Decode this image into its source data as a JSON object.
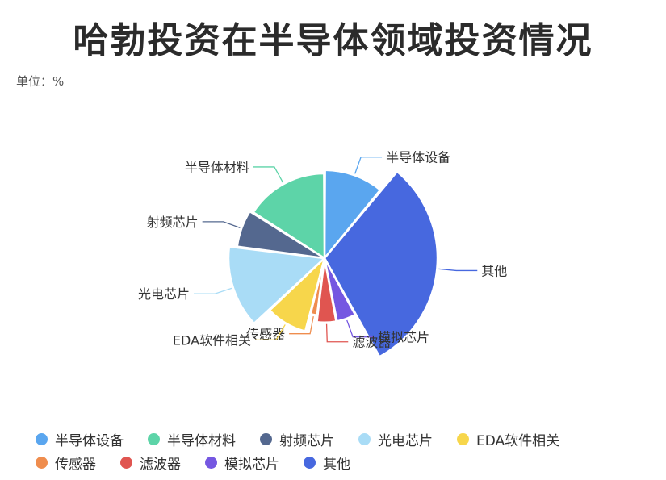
{
  "header": {
    "title": "哈勃投资在半导体领域投资情况",
    "unit": "单位：%"
  },
  "chart_data": {
    "type": "pie",
    "subtype": "nightingale-rose",
    "title": "哈勃投资在半导体领域投资情况",
    "unit_label": "单位：%",
    "legend_position": "bottom",
    "slices": [
      {
        "name": "半导体设备",
        "value": 11,
        "radius_value": 0.78,
        "color": "#5aa6ef"
      },
      {
        "name": "其他",
        "value": 31,
        "radius_value": 1.0,
        "color": "#4768df"
      },
      {
        "name": "模拟芯片",
        "value": 5,
        "radius_value": 0.57,
        "color": "#7557e1"
      },
      {
        "name": "滤波器",
        "value": 5,
        "radius_value": 0.57,
        "color": "#e05550"
      },
      {
        "name": "传感器",
        "value": 2,
        "radius_value": 0.51,
        "color": "#ef8d4e"
      },
      {
        "name": "EDA软件相关",
        "value": 9,
        "radius_value": 0.67,
        "color": "#f7d64b"
      },
      {
        "name": "光电芯片",
        "value": 14,
        "radius_value": 0.85,
        "color": "#a9dcf6"
      },
      {
        "name": "射频芯片",
        "value": 7,
        "radius_value": 0.78,
        "color": "#54688f"
      },
      {
        "name": "半导体材料",
        "value": 16,
        "radius_value": 0.75,
        "color": "#5dd4a8"
      }
    ],
    "legend": [
      [
        "半导体设备",
        "半导体材料",
        "射频芯片",
        "光电芯片",
        "EDA软件相关"
      ],
      [
        "传感器",
        "滤波器",
        "模拟芯片",
        "其他"
      ]
    ]
  }
}
